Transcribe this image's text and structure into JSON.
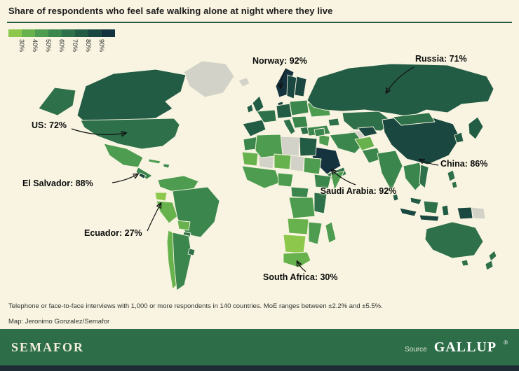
{
  "title": "Share of respondents who feel safe walking alone at night where they live",
  "legend": {
    "tick_labels": [
      "30%",
      "40%",
      "50%",
      "60%",
      "70%",
      "80%",
      "90%"
    ],
    "colors": [
      "#8dc84d",
      "#68b24e",
      "#4d9c4f",
      "#3a864d",
      "#2d7049",
      "#235c45",
      "#1a4840",
      "#14333e"
    ],
    "no_data_color": "#d3d2c8"
  },
  "annotations": [
    {
      "country": "Norway",
      "text": "Norway: 92%"
    },
    {
      "country": "Russia",
      "text": "Russia: 71%"
    },
    {
      "country": "US",
      "text": "US: 72%"
    },
    {
      "country": "El Salvador",
      "text": "El Salvador: 88%"
    },
    {
      "country": "China",
      "text": "China: 86%"
    },
    {
      "country": "Saudi Arabia",
      "text": "Saudi Arabia: 92%"
    },
    {
      "country": "Ecuador",
      "text": "Ecuador: 27%"
    },
    {
      "country": "South Africa",
      "text": "South Africa: 30%"
    }
  ],
  "footnotes": {
    "line1": "Telephone or face-to-face interviews with 1,000 or more respondents in 140 countries. MoE ranges between ±2.2% and ±5.5%.",
    "line2": "Map: Jeronimo Gonzalez/Semafor"
  },
  "footer": {
    "brand": "SEMAFOR",
    "source_label": "Source",
    "source_name": "GALLUP",
    "source_mark": "®"
  },
  "chart_data": {
    "type": "heatmap",
    "subtype": "choropleth-world-map",
    "title": "Share of respondents who feel safe walking alone at night where they live",
    "unit": "percent",
    "scale_ticks": [
      "30%",
      "40%",
      "50%",
      "60%",
      "70%",
      "80%",
      "90%"
    ],
    "scale_colors": [
      "#8dc84d",
      "#68b24e",
      "#4d9c4f",
      "#3a864d",
      "#2d7049",
      "#235c45",
      "#1a4840",
      "#14333e"
    ],
    "no_data_color": "#d3d2c8",
    "legend_position": "top-left",
    "labeled_points": [
      {
        "country": "Norway",
        "value": 92
      },
      {
        "country": "Russia",
        "value": 71
      },
      {
        "country": "US",
        "value": 72
      },
      {
        "country": "El Salvador",
        "value": 88
      },
      {
        "country": "China",
        "value": 86
      },
      {
        "country": "Saudi Arabia",
        "value": 92
      },
      {
        "country": "Ecuador",
        "value": 27
      },
      {
        "country": "South Africa",
        "value": 30
      }
    ]
  }
}
